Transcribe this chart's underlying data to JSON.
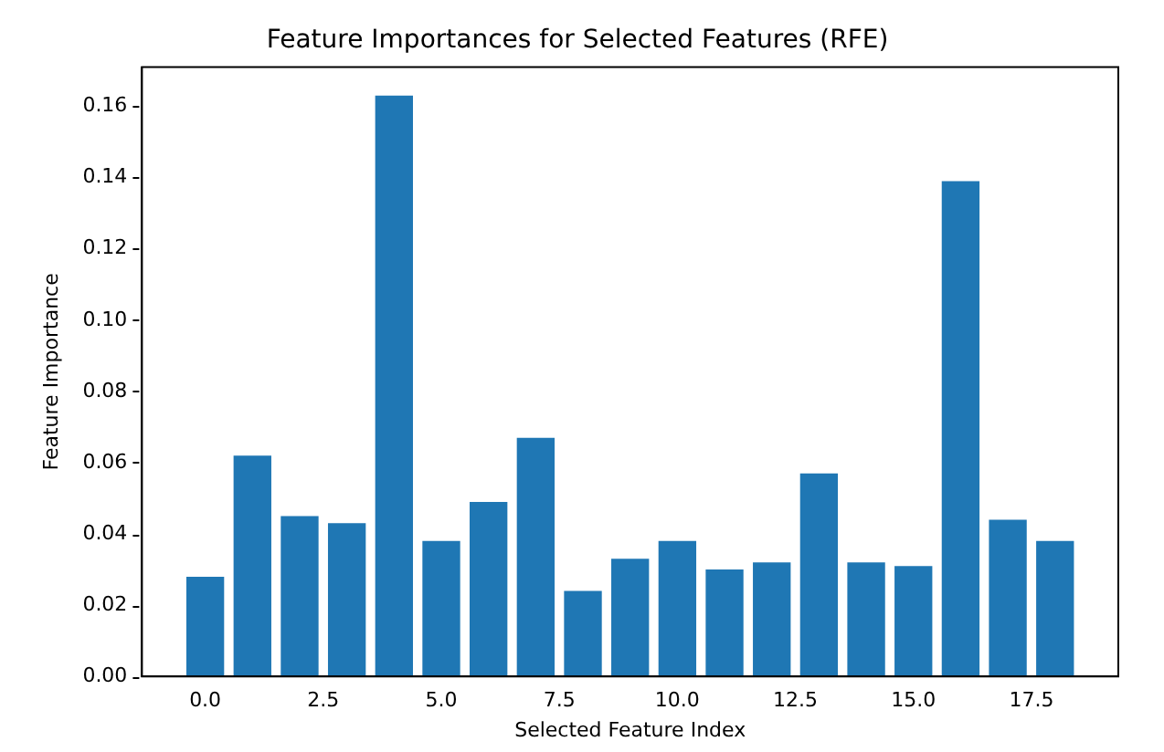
{
  "chart_data": {
    "type": "bar",
    "title": "Feature Importances for Selected Features (RFE)",
    "xlabel": "Selected Feature Index",
    "ylabel": "Feature Importance",
    "x": [
      0,
      1,
      2,
      3,
      4,
      5,
      6,
      7,
      8,
      9,
      10,
      11,
      12,
      13,
      14,
      15,
      16,
      17,
      18
    ],
    "values": [
      0.028,
      0.062,
      0.045,
      0.043,
      0.163,
      0.038,
      0.049,
      0.067,
      0.024,
      0.033,
      0.038,
      0.03,
      0.032,
      0.057,
      0.032,
      0.031,
      0.139,
      0.044,
      0.038
    ],
    "color": "#1f77b4",
    "xlim": [
      -1.34,
      19.34
    ],
    "xticks": [
      {
        "value": 0,
        "label": "0.0"
      },
      {
        "value": 2.5,
        "label": "2.5"
      },
      {
        "value": 5,
        "label": "5.0"
      },
      {
        "value": 7.5,
        "label": "7.5"
      },
      {
        "value": 10,
        "label": "10.0"
      },
      {
        "value": 12.5,
        "label": "12.5"
      },
      {
        "value": 15,
        "label": "15.0"
      },
      {
        "value": 17.5,
        "label": "17.5"
      }
    ],
    "ylim": [
      0,
      0.171
    ],
    "yticks": [
      {
        "value": 0,
        "label": "0.00"
      },
      {
        "value": 0.02,
        "label": "0.02"
      },
      {
        "value": 0.04,
        "label": "0.04"
      },
      {
        "value": 0.06,
        "label": "0.06"
      },
      {
        "value": 0.08,
        "label": "0.08"
      },
      {
        "value": 0.1,
        "label": "0.10"
      },
      {
        "value": 0.12,
        "label": "0.12"
      },
      {
        "value": 0.14,
        "label": "0.14"
      },
      {
        "value": 0.16,
        "label": "0.16"
      }
    ],
    "grid": false,
    "legend": false
  }
}
